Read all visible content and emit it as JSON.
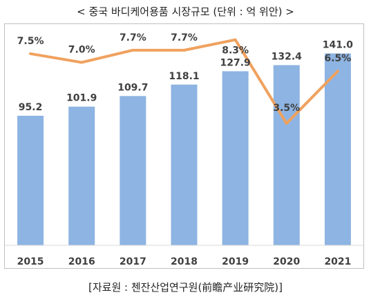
{
  "title": "< 중국 바디케어용품 시장규모 (단위 : 억 위안) >",
  "source": "[자료원 : 첸잔산업연구원(前瞻产业研究院)]",
  "colors": {
    "bar": "#8db4e2",
    "line": "#f0a15e",
    "text": "#404040",
    "axis": "#d9d9d9"
  },
  "chart_data": {
    "type": "bar",
    "categories": [
      "2015",
      "2016",
      "2017",
      "2018",
      "2019",
      "2020",
      "2021"
    ],
    "series": [
      {
        "type": "bar",
        "values": [
          95.2,
          101.9,
          109.7,
          118.1,
          127.9,
          132.4,
          141.0
        ],
        "labels": [
          "95.2",
          "101.9",
          "109.7",
          "118.1",
          "127.9",
          "132.4",
          "141.0"
        ]
      },
      {
        "type": "line",
        "values": [
          7.5,
          7.0,
          7.7,
          7.7,
          8.3,
          3.5,
          6.5
        ],
        "labels": [
          "7.5%",
          "7.0%",
          "7.7%",
          "7.7%",
          "8.3%",
          "3.5%",
          "6.5%"
        ]
      }
    ],
    "ylim": [
      0,
      160
    ],
    "y2lim": [
      -3.5,
      9.0
    ],
    "grid": false,
    "legend": "none"
  }
}
